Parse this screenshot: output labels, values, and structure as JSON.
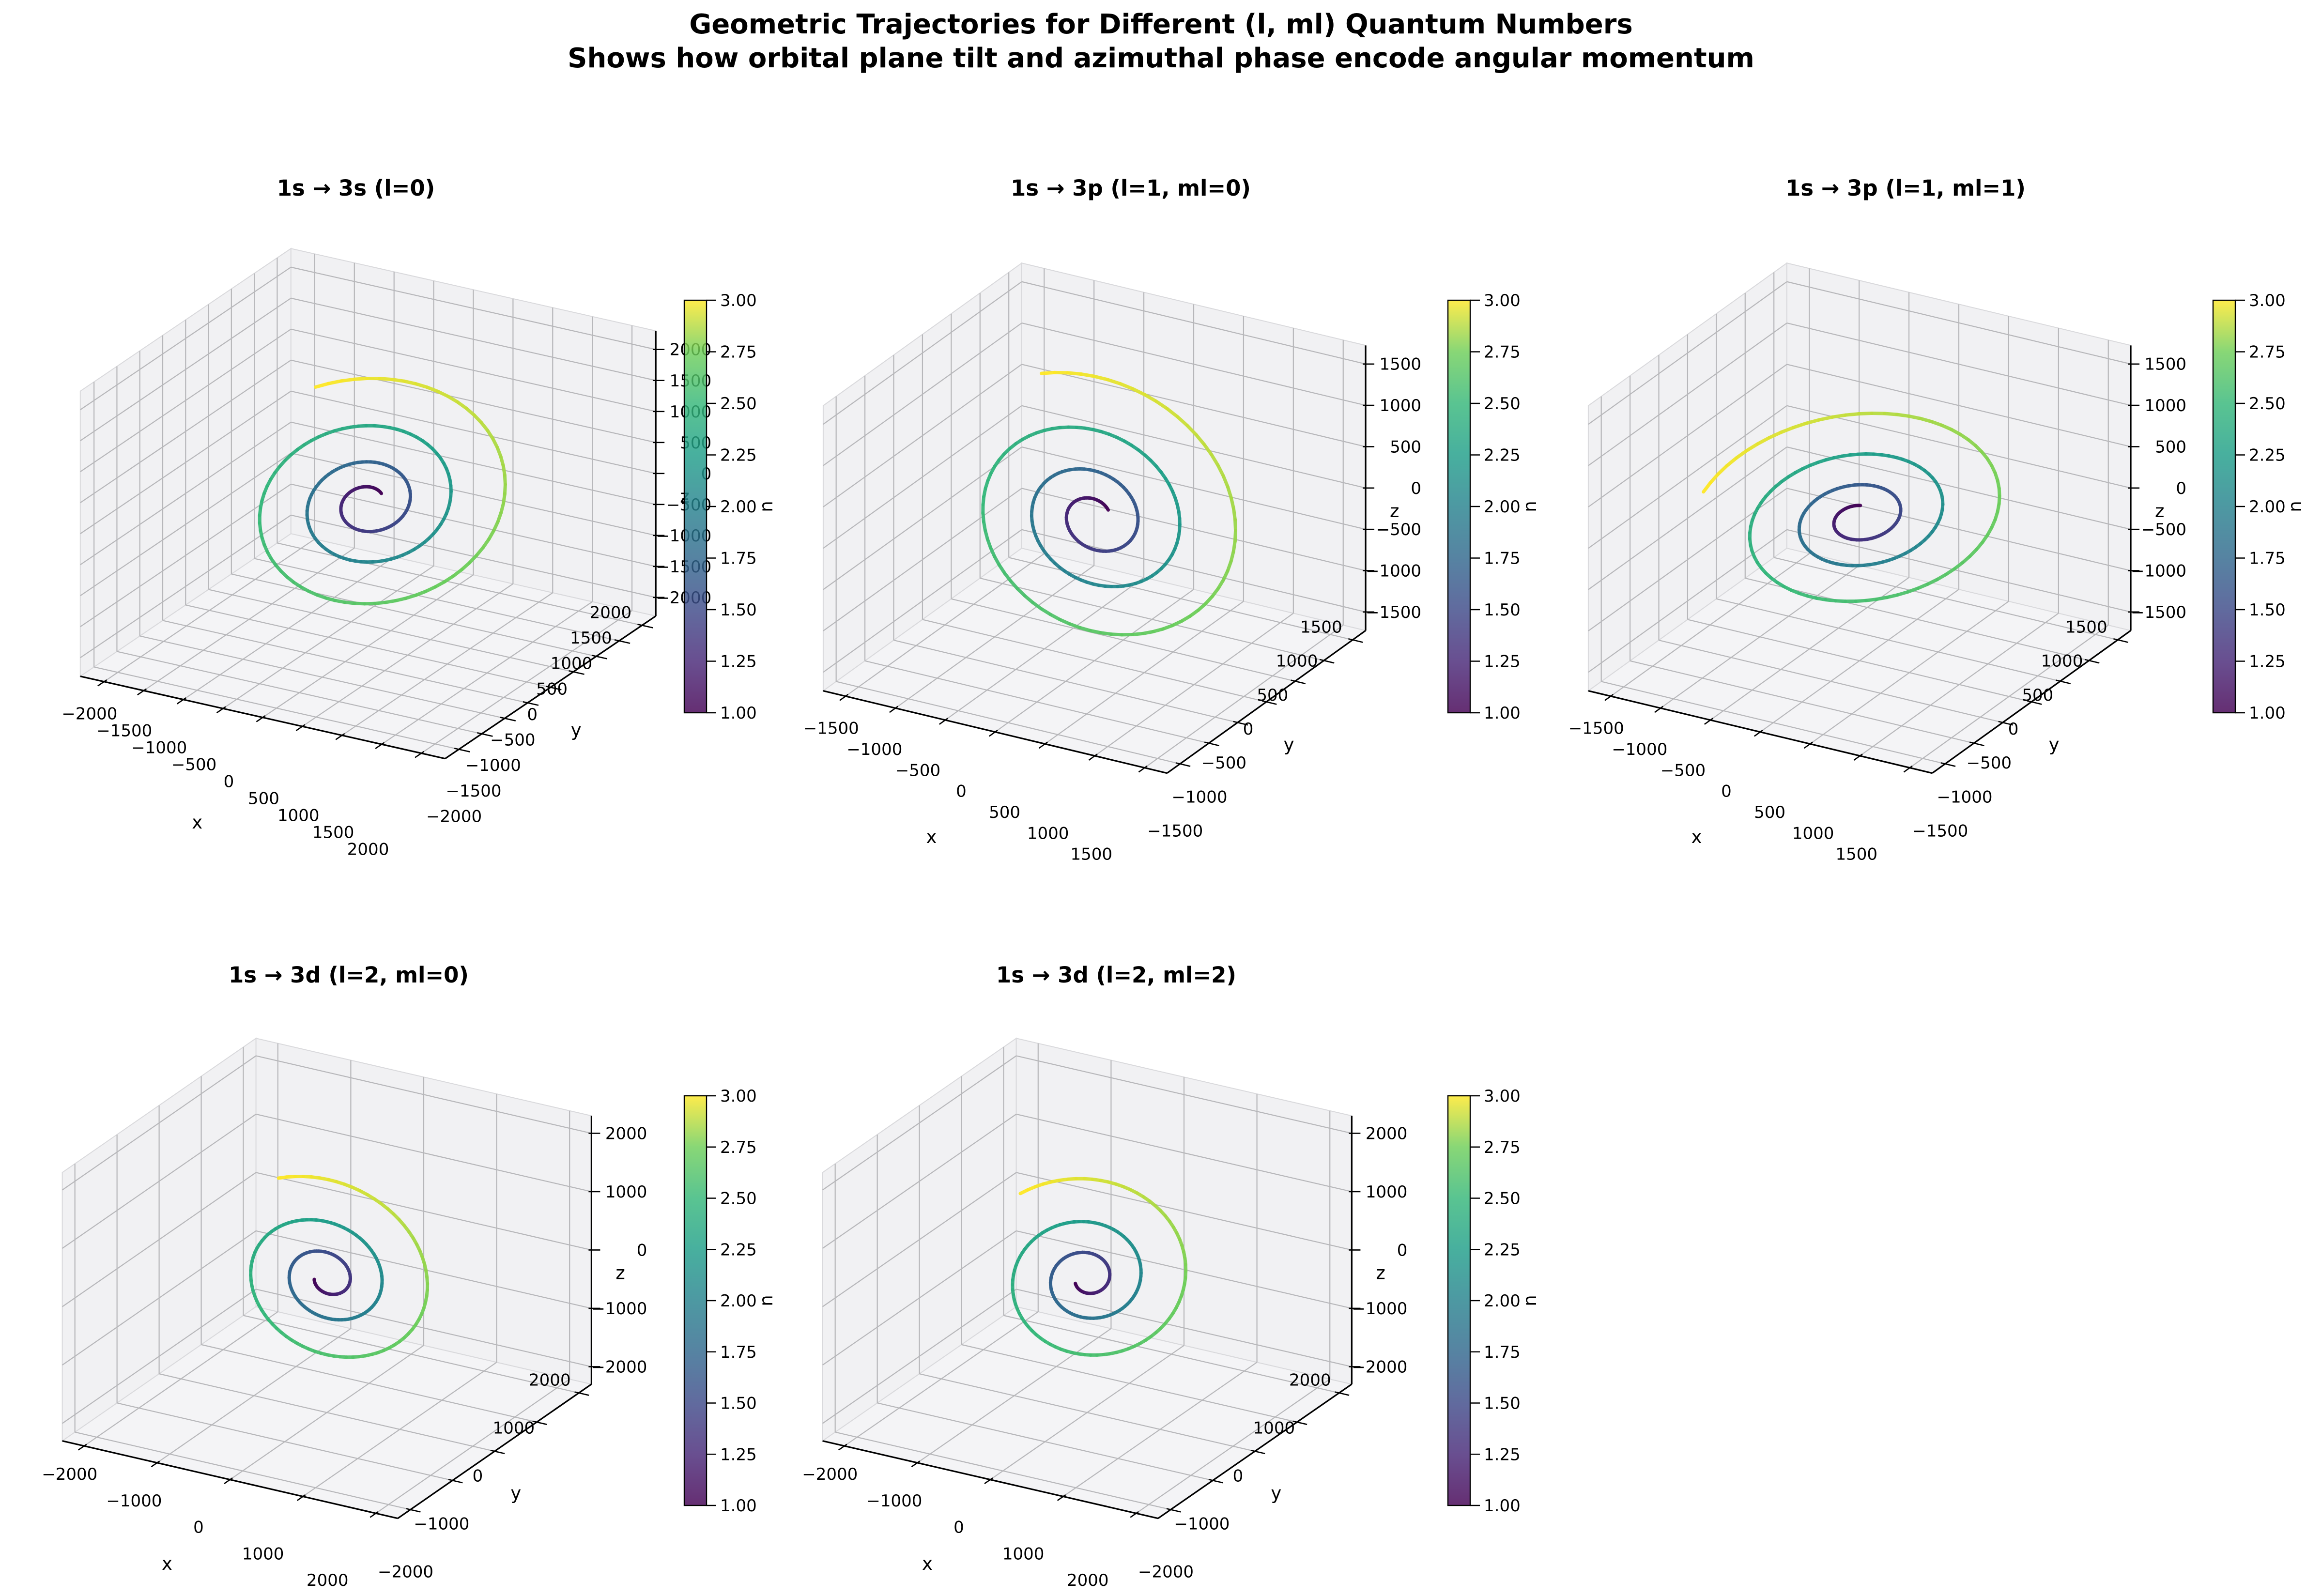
{
  "figure": {
    "title_line1": "Geometric Trajectories for Different (l, ml) Quantum Numbers",
    "title_line2": "Shows how orbital plane tilt and azimuthal phase encode angular momentum"
  },
  "colorbar": {
    "label": "n",
    "colormap": "viridis",
    "vmin": 1.0,
    "vmax": 3.0,
    "tick_labels": [
      "3.00",
      "2.75",
      "2.50",
      "2.25",
      "2.00",
      "1.75",
      "1.50",
      "1.25",
      "1.00"
    ]
  },
  "chart_data": [
    {
      "type": "line3d",
      "title": "1s → 3s (l=0)",
      "xlabel": "x",
      "ylabel": "y",
      "zlabel": "z",
      "colorbar_label": "n",
      "axis_lim": 2300,
      "tick_values": [
        -2000,
        -1500,
        -1000,
        -500,
        0,
        500,
        1000,
        1500,
        2000
      ],
      "tick_labels": [
        "−2000",
        "−1500",
        "−1000",
        "−500",
        "0",
        "500",
        "1000",
        "1500",
        "2000"
      ],
      "n_range": [
        1,
        3
      ],
      "trajectory": {
        "shape": "expanding-spiral",
        "n_start": 1,
        "n_end": 3,
        "r0": 205,
        "tilt_deg": 50,
        "sweep_deg": 1150,
        "phi_end_deg": 130
      }
    },
    {
      "type": "line3d",
      "title": "1s → 3p (l=1, ml=0)",
      "xlabel": "x",
      "ylabel": "y",
      "zlabel": "z",
      "colorbar_label": "n",
      "axis_lim": 1725,
      "tick_values": [
        -1500,
        -1000,
        -500,
        0,
        500,
        1000,
        1500
      ],
      "tick_labels": [
        "−1500",
        "−1000",
        "−500",
        "0",
        "500",
        "1000",
        "1500"
      ],
      "n_range": [
        1,
        3
      ],
      "trajectory": {
        "shape": "expanding-spiral",
        "n_start": 1,
        "n_end": 3,
        "r0": 178,
        "tilt_deg": 80,
        "sweep_deg": 1150,
        "phi_end_deg": 115
      }
    },
    {
      "type": "line3d",
      "title": "1s → 3p (l=1, ml=1)",
      "xlabel": "x",
      "ylabel": "y",
      "zlabel": "z",
      "colorbar_label": "n",
      "axis_lim": 1725,
      "tick_values": [
        -1500,
        -1000,
        -500,
        0,
        500,
        1000,
        1500
      ],
      "tick_labels": [
        "−1500",
        "−1000",
        "−500",
        "0",
        "500",
        "1000",
        "1500"
      ],
      "n_range": [
        1,
        3
      ],
      "trajectory": {
        "shape": "expanding-spiral",
        "n_start": 1,
        "n_end": 3,
        "r0": 167,
        "tilt_deg": 25,
        "sweep_deg": 1150,
        "phi_end_deg": 185
      }
    },
    {
      "type": "line3d",
      "title": "1s → 3d (l=2, ml=0)",
      "xlabel": "x",
      "ylabel": "y",
      "zlabel": "z",
      "colorbar_label": "n",
      "axis_lim": 2300,
      "tick_values": [
        -2000,
        -1000,
        0,
        1000,
        2000
      ],
      "tick_labels": [
        "−2000",
        "−1000",
        "0",
        "1000",
        "2000"
      ],
      "n_range": [
        1,
        3
      ],
      "trajectory": {
        "shape": "expanding-spiral",
        "n_start": 1,
        "n_end": 3,
        "r0": 178,
        "tilt_deg": 80,
        "sweep_deg": 1000,
        "phi_end_deg": 120
      }
    },
    {
      "type": "line3d",
      "title": "1s → 3d (l=2, ml=2)",
      "xlabel": "x",
      "ylabel": "y",
      "zlabel": "z",
      "colorbar_label": "n",
      "axis_lim": 2300,
      "tick_values": [
        -2000,
        -1000,
        0,
        1000,
        2000
      ],
      "tick_labels": [
        "−2000",
        "−1000",
        "0",
        "1000",
        "2000"
      ],
      "n_range": [
        1,
        3
      ],
      "trajectory": {
        "shape": "expanding-spiral",
        "n_start": 1,
        "n_end": 3,
        "r0": 172,
        "tilt_deg": 62,
        "sweep_deg": 1000,
        "phi_end_deg": 140
      }
    }
  ]
}
